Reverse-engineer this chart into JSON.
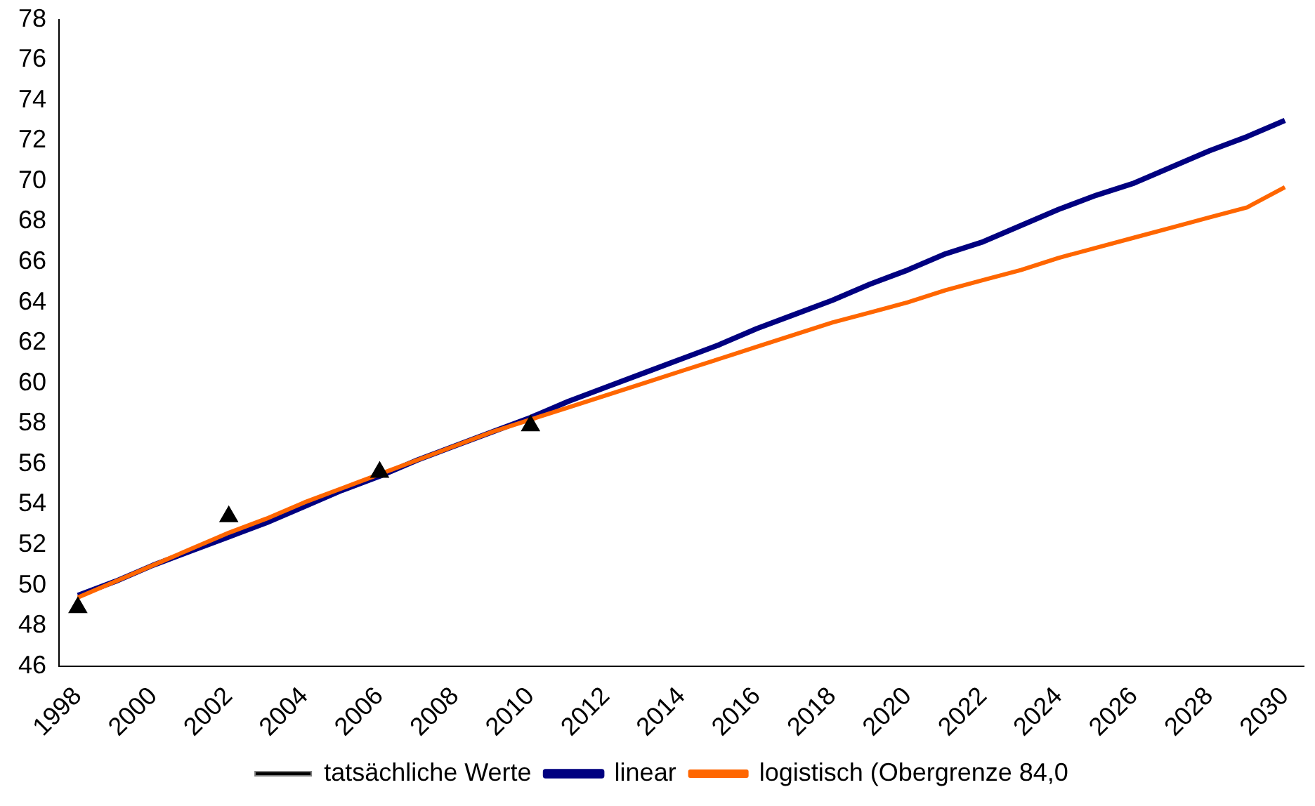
{
  "chart_data": {
    "type": "line",
    "categories": [
      "1998",
      null,
      "2000",
      null,
      "2002",
      null,
      "2004",
      null,
      "2006",
      null,
      "2008",
      null,
      "2010",
      null,
      "2012",
      null,
      "2014",
      null,
      "2016",
      null,
      "2018",
      null,
      "2020",
      null,
      "2022",
      null,
      "2024",
      null,
      "2026",
      null,
      "2028",
      null,
      "2030"
    ],
    "ylim": [
      46,
      78
    ],
    "yticks": [
      46,
      48,
      50,
      52,
      54,
      56,
      58,
      60,
      62,
      64,
      66,
      68,
      70,
      72,
      74,
      76,
      78
    ],
    "grid": false,
    "legend": "bottom",
    "series": [
      {
        "name": "tatsächliche Werte",
        "type": "scatter",
        "marker": "triangle",
        "color": "#000000",
        "values": [
          48.9,
          null,
          null,
          null,
          53.4,
          null,
          null,
          null,
          55.6,
          null,
          null,
          null,
          57.9,
          null,
          null,
          null,
          null,
          null,
          null,
          null,
          null,
          null,
          null,
          null,
          null,
          null,
          null,
          null,
          null,
          null,
          null,
          null,
          null
        ]
      },
      {
        "name": "linear",
        "marker": "none",
        "color": "#000080",
        "values": [
          49.5,
          50.2,
          51.0,
          51.7,
          52.4,
          53.1,
          53.9,
          54.7,
          55.4,
          56.2,
          56.9,
          57.6,
          58.3,
          59.1,
          59.8,
          60.5,
          61.2,
          61.9,
          62.7,
          63.4,
          64.1,
          64.9,
          65.6,
          66.4,
          67.0,
          67.8,
          68.6,
          69.3,
          69.9,
          70.7,
          71.5,
          72.2,
          73.0
        ]
      },
      {
        "name": "logistisch (Obergrenze 84,0",
        "marker": "none",
        "color": "#ff6600",
        "values": [
          49.4,
          50.2,
          51.0,
          51.8,
          52.6,
          53.3,
          54.1,
          54.8,
          55.5,
          56.2,
          56.9,
          57.6,
          58.2,
          58.8,
          59.4,
          60.0,
          60.6,
          61.2,
          61.8,
          62.4,
          63.0,
          63.5,
          64.0,
          64.6,
          65.1,
          65.6,
          66.2,
          66.7,
          67.2,
          67.7,
          68.2,
          68.7,
          69.7
        ]
      }
    ]
  }
}
